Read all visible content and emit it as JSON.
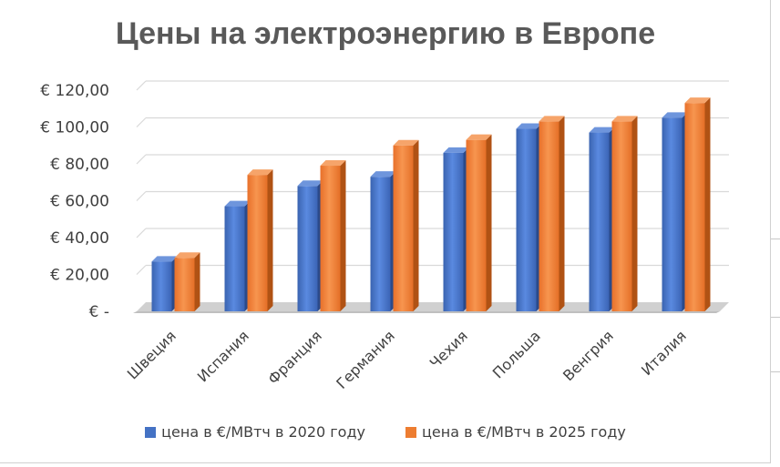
{
  "chart_data": {
    "type": "bar",
    "title": "Цены на электроэнергию в Европе",
    "categories": [
      "Швеция",
      "Испания",
      "Франция",
      "Германия",
      "Чехия",
      "Польша",
      "Венгрия",
      "Италия"
    ],
    "series": [
      {
        "name": "цена в €/МВтч в 2020 году",
        "color": "#4472C4",
        "values": [
          27,
          57,
          68,
          73,
          86,
          99,
          97,
          105
        ]
      },
      {
        "name": "цена в €/МВтч в 2025 году",
        "color": "#ED7D31",
        "values": [
          29,
          74,
          79,
          90,
          93,
          103,
          103,
          113
        ]
      }
    ],
    "ylim": [
      0,
      120
    ],
    "yticks": [
      0,
      20,
      40,
      60,
      80,
      100,
      120
    ],
    "ytick_labels": [
      "€ -",
      "€ 20,00",
      "€ 40,00",
      "€ 60,00",
      "€ 80,00",
      "€ 100,00",
      "€ 120,00"
    ],
    "grid": true,
    "legend_position": "bottom",
    "xlabel": "",
    "ylabel": ""
  }
}
